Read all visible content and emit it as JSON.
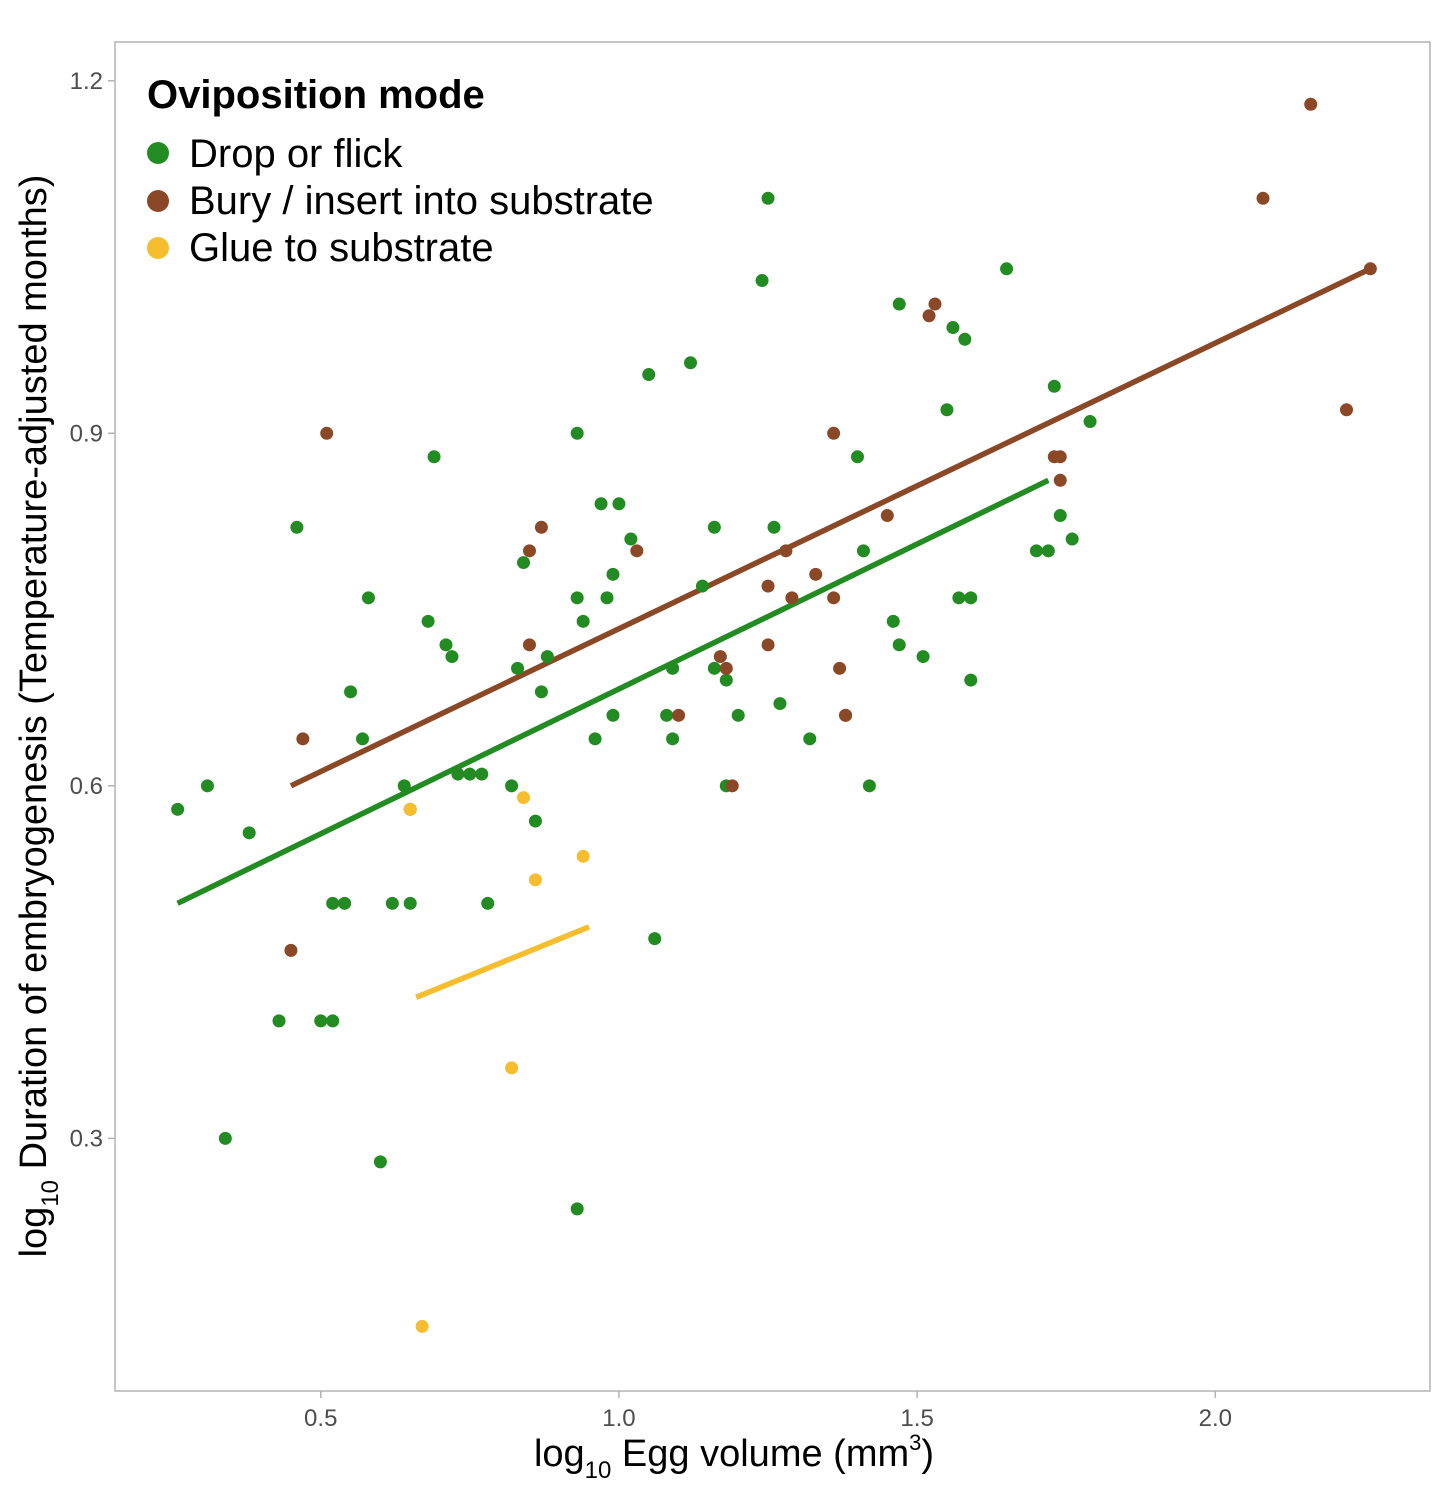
{
  "chart_data": {
    "type": "scatter",
    "xlabel": {
      "prefix": "log",
      "sub": "10",
      "main": " Egg volume (mm",
      "sup": "3",
      "suffix": ")"
    },
    "ylabel": {
      "prefix": "log",
      "sub": "10",
      "main": " Duration of embryogenesis (Temperature-adjusted months)"
    },
    "xlim": [
      0.155,
      2.36
    ],
    "ylim": [
      0.085,
      1.233
    ],
    "x_ticks": [
      {
        "value": 0.5,
        "label": "0.5"
      },
      {
        "value": 1.0,
        "label": "1.0"
      },
      {
        "value": 1.5,
        "label": "1.5"
      },
      {
        "value": 2.0,
        "label": "2.0"
      }
    ],
    "y_ticks": [
      {
        "value": 0.3,
        "label": "0.3"
      },
      {
        "value": 0.6,
        "label": "0.6"
      },
      {
        "value": 0.9,
        "label": "0.9"
      },
      {
        "value": 1.2,
        "label": "1.2"
      }
    ],
    "grid": false,
    "legend": {
      "title": "Oviposition mode",
      "position": "top-left"
    },
    "series": [
      {
        "name": "Drop or flick",
        "color": "#228B22",
        "fit": [
          [
            0.26,
            0.5
          ],
          [
            1.72,
            0.86
          ]
        ],
        "points": [
          [
            0.26,
            0.58
          ],
          [
            0.31,
            0.6
          ],
          [
            0.34,
            0.3
          ],
          [
            0.38,
            0.56
          ],
          [
            0.43,
            0.4
          ],
          [
            0.46,
            0.82
          ],
          [
            0.5,
            0.4
          ],
          [
            0.52,
            0.4
          ],
          [
            0.52,
            0.5
          ],
          [
            0.54,
            0.5
          ],
          [
            0.55,
            0.68
          ],
          [
            0.57,
            0.64
          ],
          [
            0.58,
            0.76
          ],
          [
            0.6,
            0.28
          ],
          [
            0.62,
            0.5
          ],
          [
            0.64,
            0.6
          ],
          [
            0.65,
            0.58
          ],
          [
            0.65,
            0.5
          ],
          [
            0.68,
            0.74
          ],
          [
            0.69,
            0.88
          ],
          [
            0.71,
            0.72
          ],
          [
            0.72,
            0.71
          ],
          [
            0.73,
            0.61
          ],
          [
            0.75,
            0.61
          ],
          [
            0.77,
            0.61
          ],
          [
            0.78,
            0.5
          ],
          [
            0.82,
            0.6
          ],
          [
            0.83,
            0.7
          ],
          [
            0.84,
            0.79
          ],
          [
            0.86,
            0.57
          ],
          [
            0.87,
            0.68
          ],
          [
            0.88,
            0.71
          ],
          [
            0.93,
            0.9
          ],
          [
            0.93,
            0.76
          ],
          [
            0.93,
            0.24
          ],
          [
            0.94,
            0.74
          ],
          [
            0.96,
            0.64
          ],
          [
            0.97,
            0.84
          ],
          [
            0.98,
            0.76
          ],
          [
            0.99,
            0.78
          ],
          [
            0.99,
            0.66
          ],
          [
            1.0,
            0.84
          ],
          [
            1.02,
            0.81
          ],
          [
            1.05,
            0.95
          ],
          [
            1.06,
            0.47
          ],
          [
            1.08,
            0.66
          ],
          [
            1.09,
            0.7
          ],
          [
            1.09,
            0.64
          ],
          [
            1.12,
            0.96
          ],
          [
            1.14,
            0.77
          ],
          [
            1.16,
            0.82
          ],
          [
            1.16,
            0.7
          ],
          [
            1.18,
            0.69
          ],
          [
            1.18,
            0.6
          ],
          [
            1.2,
            0.66
          ],
          [
            1.24,
            1.03
          ],
          [
            1.25,
            1.1
          ],
          [
            1.26,
            0.82
          ],
          [
            1.27,
            0.67
          ],
          [
            1.32,
            0.64
          ],
          [
            1.4,
            0.88
          ],
          [
            1.41,
            0.8
          ],
          [
            1.42,
            0.6
          ],
          [
            1.46,
            0.74
          ],
          [
            1.47,
            1.01
          ],
          [
            1.47,
            0.72
          ],
          [
            1.51,
            0.71
          ],
          [
            1.55,
            0.92
          ],
          [
            1.56,
            0.99
          ],
          [
            1.57,
            0.76
          ],
          [
            1.58,
            0.98
          ],
          [
            1.59,
            0.76
          ],
          [
            1.59,
            0.69
          ],
          [
            1.65,
            1.04
          ],
          [
            1.7,
            0.8
          ],
          [
            1.72,
            0.8
          ],
          [
            1.73,
            0.94
          ],
          [
            1.74,
            0.83
          ],
          [
            1.76,
            0.81
          ],
          [
            1.79,
            0.91
          ]
        ]
      },
      {
        "name": "Bury / insert into substrate",
        "color": "#8B4826",
        "fit": [
          [
            0.45,
            0.6
          ],
          [
            2.26,
            1.04
          ]
        ],
        "points": [
          [
            0.45,
            0.46
          ],
          [
            0.47,
            0.64
          ],
          [
            0.51,
            0.9
          ],
          [
            0.85,
            0.72
          ],
          [
            0.85,
            0.8
          ],
          [
            0.87,
            0.82
          ],
          [
            1.03,
            0.8
          ],
          [
            1.1,
            0.66
          ],
          [
            1.17,
            0.71
          ],
          [
            1.18,
            0.7
          ],
          [
            1.19,
            0.6
          ],
          [
            1.25,
            0.72
          ],
          [
            1.25,
            0.77
          ],
          [
            1.28,
            0.8
          ],
          [
            1.29,
            0.76
          ],
          [
            1.33,
            0.78
          ],
          [
            1.36,
            0.76
          ],
          [
            1.36,
            0.9
          ],
          [
            1.37,
            0.7
          ],
          [
            1.38,
            0.66
          ],
          [
            1.38,
            0.66
          ],
          [
            1.45,
            0.83
          ],
          [
            1.52,
            1.0
          ],
          [
            1.53,
            1.01
          ],
          [
            1.73,
            0.88
          ],
          [
            1.74,
            0.88
          ],
          [
            1.74,
            0.86
          ],
          [
            2.08,
            1.1
          ],
          [
            2.16,
            1.18
          ],
          [
            2.22,
            0.92
          ],
          [
            2.26,
            1.04
          ]
        ]
      },
      {
        "name": "Glue to substrate",
        "color": "#F6BE2E",
        "fit": [
          [
            0.66,
            0.42
          ],
          [
            0.95,
            0.48
          ]
        ],
        "points": [
          [
            0.65,
            0.58
          ],
          [
            0.67,
            0.14
          ],
          [
            0.82,
            0.36
          ],
          [
            0.84,
            0.59
          ],
          [
            0.86,
            0.52
          ],
          [
            0.94,
            0.54
          ]
        ]
      }
    ]
  }
}
